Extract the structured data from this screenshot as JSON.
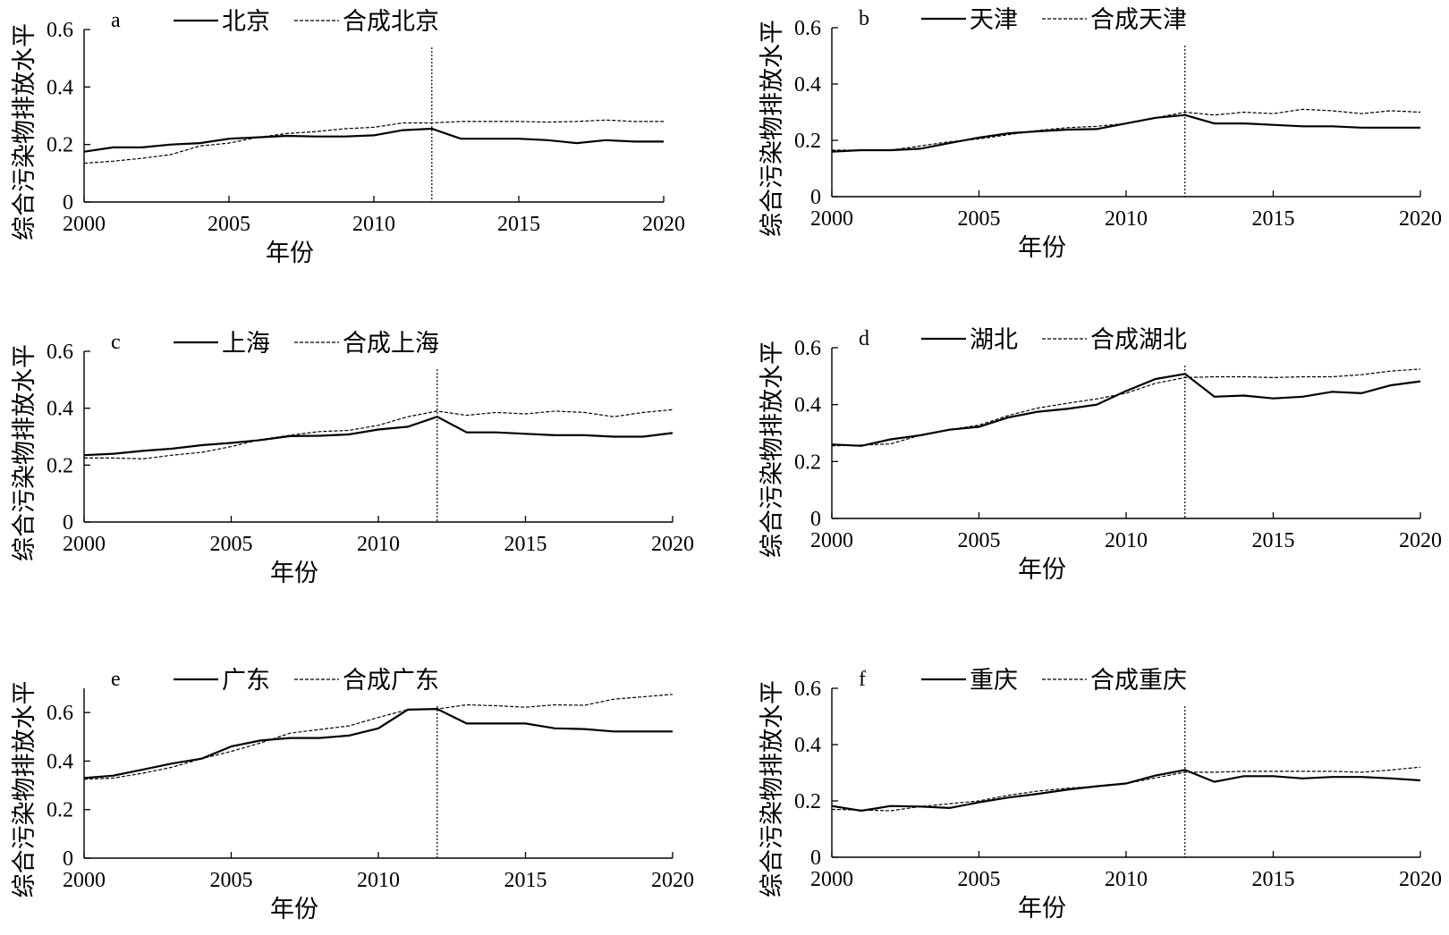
{
  "figure": {
    "xlabel": "年份",
    "ylabel": "综合污染物排放水平"
  },
  "chart_data": [
    {
      "panel": "a",
      "type": "line",
      "xlabel": "年份",
      "ylabel": "综合污染物排放水平",
      "xlim": [
        2000,
        2020
      ],
      "ylim": [
        0,
        0.6
      ],
      "xticks": [
        2000,
        2005,
        2010,
        2015,
        2020
      ],
      "yticks": [
        0,
        0.2,
        0.4,
        0.6
      ],
      "ytick_labels": [
        "0",
        "0.2",
        "0.4",
        "0.6"
      ],
      "reference_line_x": 2012,
      "legend_position": "top",
      "grid": false,
      "x": [
        2000,
        2001,
        2002,
        2003,
        2004,
        2005,
        2006,
        2007,
        2008,
        2009,
        2010,
        2011,
        2012,
        2013,
        2014,
        2015,
        2016,
        2017,
        2018,
        2019,
        2020
      ],
      "series": [
        {
          "name": "北京",
          "style": "solid",
          "values": [
            0.175,
            0.19,
            0.19,
            0.2,
            0.205,
            0.22,
            0.225,
            0.23,
            0.228,
            0.228,
            0.232,
            0.25,
            0.255,
            0.22,
            0.22,
            0.22,
            0.215,
            0.205,
            0.215,
            0.21,
            0.21
          ]
        },
        {
          "name": "合成北京",
          "style": "dashed",
          "values": [
            0.135,
            0.142,
            0.152,
            0.165,
            0.195,
            0.205,
            0.225,
            0.238,
            0.245,
            0.255,
            0.26,
            0.275,
            0.275,
            0.28,
            0.28,
            0.28,
            0.278,
            0.28,
            0.285,
            0.28,
            0.28
          ]
        }
      ]
    },
    {
      "panel": "b",
      "type": "line",
      "xlabel": "年份",
      "ylabel": "综合污染物排放水平",
      "xlim": [
        2000,
        2020
      ],
      "ylim": [
        0,
        0.6
      ],
      "xticks": [
        2000,
        2005,
        2010,
        2015,
        2020
      ],
      "yticks": [
        0,
        0.2,
        0.4,
        0.6
      ],
      "ytick_labels": [
        "0",
        "0.2",
        "0.4",
        "0.6"
      ],
      "reference_line_x": 2012,
      "legend_position": "top",
      "grid": false,
      "x": [
        2000,
        2001,
        2002,
        2003,
        2004,
        2005,
        2006,
        2007,
        2008,
        2009,
        2010,
        2011,
        2012,
        2013,
        2014,
        2015,
        2016,
        2017,
        2018,
        2019,
        2020
      ],
      "series": [
        {
          "name": "天津",
          "style": "solid",
          "values": [
            0.16,
            0.165,
            0.165,
            0.17,
            0.19,
            0.21,
            0.225,
            0.232,
            0.238,
            0.24,
            0.26,
            0.28,
            0.29,
            0.26,
            0.26,
            0.255,
            0.25,
            0.25,
            0.245,
            0.245,
            0.245
          ]
        },
        {
          "name": "合成天津",
          "style": "dashed",
          "values": [
            0.165,
            0.165,
            0.165,
            0.18,
            0.195,
            0.205,
            0.22,
            0.235,
            0.245,
            0.25,
            0.26,
            0.28,
            0.3,
            0.29,
            0.3,
            0.295,
            0.31,
            0.305,
            0.295,
            0.305,
            0.3
          ]
        }
      ]
    },
    {
      "panel": "c",
      "type": "line",
      "xlabel": "年份",
      "ylabel": "综合污染物排放水平",
      "xlim": [
        2000,
        2020
      ],
      "ylim": [
        0,
        0.6
      ],
      "xticks": [
        2000,
        2005,
        2010,
        2015,
        2020
      ],
      "yticks": [
        0,
        0.2,
        0.4,
        0.6
      ],
      "ytick_labels": [
        "0",
        "0.2",
        "0.4",
        "0.6"
      ],
      "reference_line_x": 2012,
      "legend_position": "top",
      "grid": false,
      "x": [
        2000,
        2001,
        2002,
        2003,
        2004,
        2005,
        2006,
        2007,
        2008,
        2009,
        2010,
        2011,
        2012,
        2013,
        2014,
        2015,
        2016,
        2017,
        2018,
        2019,
        2020
      ],
      "series": [
        {
          "name": "上海",
          "style": "solid",
          "values": [
            0.235,
            0.24,
            0.25,
            0.258,
            0.27,
            0.278,
            0.288,
            0.302,
            0.303,
            0.308,
            0.325,
            0.335,
            0.37,
            0.315,
            0.315,
            0.31,
            0.305,
            0.305,
            0.3,
            0.3,
            0.313
          ]
        },
        {
          "name": "合成上海",
          "style": "dashed",
          "values": [
            0.225,
            0.225,
            0.222,
            0.235,
            0.245,
            0.265,
            0.29,
            0.305,
            0.318,
            0.322,
            0.34,
            0.37,
            0.39,
            0.375,
            0.385,
            0.38,
            0.39,
            0.385,
            0.37,
            0.385,
            0.395
          ]
        }
      ]
    },
    {
      "panel": "d",
      "type": "line",
      "xlabel": "年份",
      "ylabel": "综合污染物排放水平",
      "xlim": [
        2000,
        2020
      ],
      "ylim": [
        0,
        0.6
      ],
      "xticks": [
        2000,
        2005,
        2010,
        2015,
        2020
      ],
      "yticks": [
        0,
        0.2,
        0.4,
        0.6
      ],
      "ytick_labels": [
        "0",
        "0.2",
        "0.4",
        "0.6"
      ],
      "reference_line_x": 2012,
      "legend_position": "top",
      "grid": false,
      "x": [
        2000,
        2001,
        2002,
        2003,
        2004,
        2005,
        2006,
        2007,
        2008,
        2009,
        2010,
        2011,
        2012,
        2013,
        2014,
        2015,
        2016,
        2017,
        2018,
        2019,
        2020
      ],
      "series": [
        {
          "name": "湖北",
          "style": "solid",
          "values": [
            0.26,
            0.255,
            0.278,
            0.292,
            0.312,
            0.322,
            0.355,
            0.375,
            0.385,
            0.4,
            0.448,
            0.49,
            0.508,
            0.428,
            0.432,
            0.422,
            0.428,
            0.445,
            0.44,
            0.468,
            0.482
          ]
        },
        {
          "name": "合成湖北",
          "style": "dashed",
          "values": [
            0.255,
            0.258,
            0.262,
            0.292,
            0.312,
            0.328,
            0.362,
            0.388,
            0.405,
            0.42,
            0.44,
            0.475,
            0.495,
            0.498,
            0.498,
            0.495,
            0.498,
            0.498,
            0.505,
            0.518,
            0.525
          ]
        }
      ]
    },
    {
      "panel": "e",
      "type": "line",
      "xlabel": "年份",
      "ylabel": "综合污染物排放水平",
      "xlim": [
        2000,
        2020
      ],
      "ylim": [
        0,
        0.7
      ],
      "xticks": [
        2000,
        2005,
        2010,
        2015,
        2020
      ],
      "yticks": [
        0,
        0.2,
        0.4,
        0.6
      ],
      "ytick_labels": [
        "0",
        "0.2",
        "0.4",
        "0.6"
      ],
      "reference_line_x": 2012,
      "legend_position": "top",
      "grid": false,
      "x": [
        2000,
        2001,
        2002,
        2003,
        2004,
        2005,
        2006,
        2007,
        2008,
        2009,
        2010,
        2011,
        2012,
        2013,
        2014,
        2015,
        2016,
        2017,
        2018,
        2019,
        2020
      ],
      "series": [
        {
          "name": "广东",
          "style": "solid",
          "values": [
            0.33,
            0.34,
            0.365,
            0.39,
            0.41,
            0.46,
            0.485,
            0.495,
            0.495,
            0.505,
            0.535,
            0.612,
            0.615,
            0.555,
            0.555,
            0.555,
            0.535,
            0.532,
            0.522,
            0.522,
            0.522
          ]
        },
        {
          "name": "合成广东",
          "style": "dashed",
          "values": [
            0.325,
            0.33,
            0.35,
            0.375,
            0.41,
            0.44,
            0.475,
            0.515,
            0.53,
            0.545,
            0.58,
            0.612,
            0.615,
            0.632,
            0.628,
            0.622,
            0.632,
            0.63,
            0.655,
            0.665,
            0.675
          ]
        }
      ]
    },
    {
      "panel": "f",
      "type": "line",
      "xlabel": "年份",
      "ylabel": "综合污染物排放水平",
      "xlim": [
        2000,
        2020
      ],
      "ylim": [
        0,
        0.6
      ],
      "xticks": [
        2000,
        2005,
        2010,
        2015,
        2020
      ],
      "yticks": [
        0,
        0.2,
        0.4,
        0.6
      ],
      "ytick_labels": [
        "0",
        "0.2",
        "0.4",
        "0.6"
      ],
      "reference_line_x": 2012,
      "legend_position": "top",
      "grid": false,
      "x": [
        2000,
        2001,
        2002,
        2003,
        2004,
        2005,
        2006,
        2007,
        2008,
        2009,
        2010,
        2011,
        2012,
        2013,
        2014,
        2015,
        2016,
        2017,
        2018,
        2019,
        2020
      ],
      "series": [
        {
          "name": "重庆",
          "style": "solid",
          "values": [
            0.182,
            0.165,
            0.182,
            0.18,
            0.175,
            0.195,
            0.212,
            0.225,
            0.24,
            0.252,
            0.262,
            0.29,
            0.31,
            0.268,
            0.288,
            0.288,
            0.28,
            0.285,
            0.285,
            0.28,
            0.273
          ]
        },
        {
          "name": "合成重庆",
          "style": "dashed",
          "values": [
            0.17,
            0.168,
            0.165,
            0.18,
            0.19,
            0.2,
            0.22,
            0.235,
            0.245,
            0.252,
            0.262,
            0.282,
            0.302,
            0.302,
            0.305,
            0.305,
            0.305,
            0.305,
            0.302,
            0.31,
            0.32
          ]
        }
      ]
    }
  ]
}
